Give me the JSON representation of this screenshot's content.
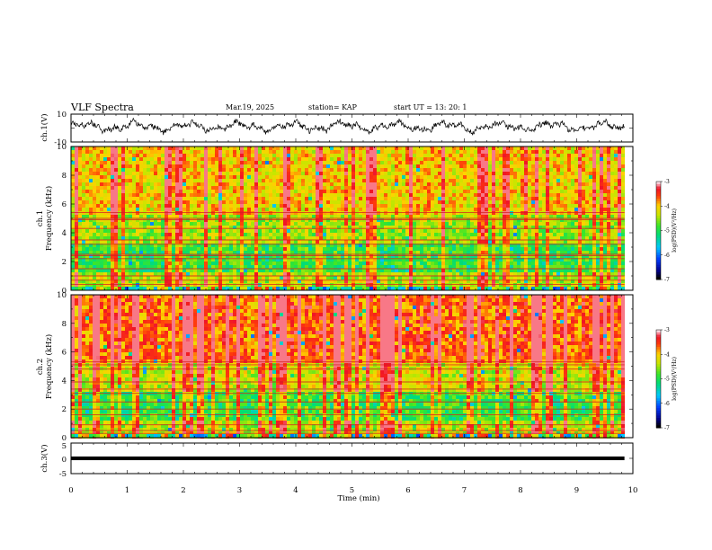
{
  "header": {
    "title": "VLF Spectra",
    "date": "Mar.19, 2025",
    "station": "station= KAP",
    "start": "start  UT =   13: 20: 1"
  },
  "chart_data": [
    {
      "type": "line",
      "panel": "ch1-waveform",
      "ylabel": "ch.1(V)",
      "ylim": [
        -10,
        10
      ],
      "yticks": [
        10,
        -10
      ],
      "x_range_min": [
        0,
        9.85
      ]
    },
    {
      "type": "heatmap",
      "panel": "ch1-spectrogram",
      "ylabel_top": "ch.1",
      "ylabel": "Frequency (kHz)",
      "ylim": [
        0,
        10
      ],
      "yticks": [
        0,
        2,
        4,
        6,
        8,
        10
      ],
      "colorbar": {
        "label": "log(PSD)(V²/Hz)",
        "ticks": [
          -3,
          -4,
          -5,
          -6,
          -7
        ],
        "range": [
          -7,
          -3
        ]
      },
      "horizontal_lines_khz": [
        0.2,
        0.4,
        0.7,
        1.0,
        1.5,
        2.2,
        2.4,
        2.5,
        3.2,
        3.5,
        4.3,
        4.9,
        5.0,
        5.4
      ]
    },
    {
      "type": "heatmap",
      "panel": "ch2-spectrogram",
      "ylabel_top": "ch.2",
      "ylabel": "Frequency (kHz)",
      "ylim": [
        0,
        10
      ],
      "yticks": [
        0,
        2,
        4,
        6,
        8,
        10
      ],
      "colorbar": {
        "label": "log(PSD)(V²/Hz)",
        "ticks": [
          -3,
          -4,
          -5,
          -6,
          -7
        ],
        "range": [
          -7,
          -3
        ]
      },
      "horizontal_lines_khz": [
        0.3,
        0.5,
        0.9,
        1.6,
        2.0,
        2.5,
        3.1,
        3.4,
        3.9,
        4.8,
        5.1,
        5.3
      ]
    },
    {
      "type": "line",
      "panel": "ch3-waveform",
      "ylabel": "ch.3(V)",
      "ylim": [
        -5,
        5
      ],
      "yticks": [
        5,
        0,
        -5
      ],
      "band": [
        -0.6,
        0.6
      ]
    }
  ],
  "xaxis": {
    "label": "Time (min)",
    "range": [
      0,
      10
    ],
    "ticks": [
      "0",
      "1",
      "2",
      "3",
      "4",
      "5",
      "6",
      "7",
      "8",
      "9",
      "10"
    ],
    "data_end": 9.85
  },
  "colors": {
    "trace": "#000000",
    "line_red": "#d22020"
  }
}
